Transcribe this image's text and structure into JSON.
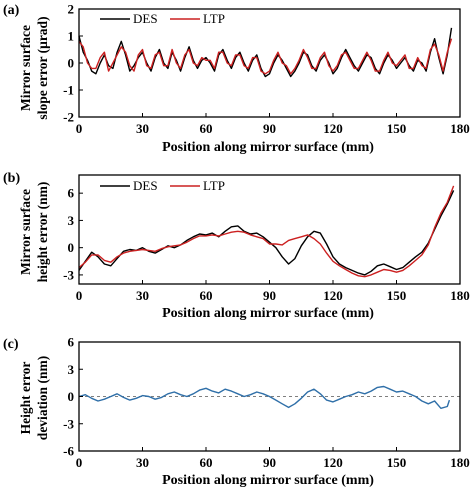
{
  "chart_data": [
    {
      "panel_label": "(a)",
      "type": "line",
      "xlabel": "Position along mirror surface (mm)",
      "ylabel_lines": [
        "Mirror surface",
        "slope error (μrad)"
      ],
      "xlim": [
        0,
        180
      ],
      "ylim": [
        -2,
        2
      ],
      "xticks": [
        0,
        30,
        60,
        90,
        120,
        150,
        180
      ],
      "yticks": [
        -2,
        -1,
        0,
        1,
        2
      ],
      "legend": "top-left",
      "series": [
        {
          "name": "DES",
          "color": "#000000",
          "x": [
            0,
            2,
            4,
            6,
            8,
            10,
            12,
            14,
            16,
            18,
            20,
            22,
            24,
            26,
            28,
            30,
            32,
            34,
            36,
            38,
            40,
            42,
            44,
            46,
            48,
            50,
            52,
            54,
            56,
            58,
            60,
            62,
            64,
            66,
            68,
            70,
            72,
            74,
            76,
            78,
            80,
            82,
            84,
            86,
            88,
            90,
            92,
            94,
            96,
            98,
            100,
            102,
            104,
            106,
            108,
            110,
            112,
            114,
            116,
            118,
            120,
            122,
            124,
            126,
            128,
            130,
            132,
            134,
            136,
            138,
            140,
            142,
            144,
            146,
            148,
            150,
            152,
            154,
            156,
            158,
            160,
            162,
            164,
            166,
            168,
            170,
            172,
            174,
            176
          ],
          "y": [
            1.0,
            0.4,
            0.1,
            -0.3,
            -0.4,
            0.0,
            0.3,
            -0.1,
            -0.2,
            0.4,
            0.8,
            0.3,
            -0.3,
            -0.1,
            0.2,
            0.4,
            0.0,
            -0.3,
            0.2,
            0.5,
            0.0,
            -0.2,
            0.4,
            0.1,
            -0.3,
            0.2,
            0.6,
            0.1,
            -0.2,
            0.1,
            0.2,
            0.0,
            -0.3,
            0.3,
            0.5,
            0.1,
            -0.2,
            0.2,
            0.4,
            0.0,
            -0.3,
            0.1,
            0.3,
            -0.2,
            -0.5,
            -0.4,
            0.0,
            0.3,
            0.1,
            -0.2,
            -0.5,
            -0.3,
            0.0,
            0.4,
            0.3,
            -0.1,
            -0.3,
            0.1,
            0.3,
            0.0,
            -0.4,
            -0.2,
            0.2,
            0.5,
            0.2,
            -0.1,
            -0.3,
            0.0,
            0.3,
            0.2,
            -0.2,
            -0.4,
            0.0,
            0.3,
            0.1,
            -0.2,
            0.0,
            0.2,
            -0.1,
            -0.3,
            0.1,
            0.0,
            -0.3,
            0.4,
            0.9,
            0.2,
            -0.4,
            0.3,
            1.3
          ]
        },
        {
          "name": "LTP",
          "color": "#cc2020",
          "x": [
            0,
            2,
            4,
            6,
            8,
            10,
            12,
            14,
            16,
            18,
            20,
            22,
            24,
            26,
            28,
            30,
            32,
            34,
            36,
            38,
            40,
            42,
            44,
            46,
            48,
            50,
            52,
            54,
            56,
            58,
            60,
            62,
            64,
            66,
            68,
            70,
            72,
            74,
            76,
            78,
            80,
            82,
            84,
            86,
            88,
            90,
            92,
            94,
            96,
            98,
            100,
            102,
            104,
            106,
            108,
            110,
            112,
            114,
            116,
            118,
            120,
            122,
            124,
            126,
            128,
            130,
            132,
            134,
            136,
            138,
            140,
            142,
            144,
            146,
            148,
            150,
            152,
            154,
            156,
            158,
            160,
            162,
            164,
            166,
            168,
            170,
            172,
            174,
            176
          ],
          "y": [
            0.8,
            0.6,
            0.0,
            -0.2,
            -0.2,
            0.2,
            0.4,
            -0.3,
            0.0,
            0.3,
            0.6,
            0.4,
            -0.1,
            -0.3,
            0.3,
            0.5,
            -0.1,
            -0.2,
            0.3,
            0.4,
            -0.1,
            -0.1,
            0.5,
            0.0,
            -0.2,
            0.3,
            0.5,
            0.0,
            -0.1,
            0.2,
            0.1,
            0.1,
            -0.2,
            0.4,
            0.4,
            0.0,
            -0.1,
            0.3,
            0.3,
            -0.1,
            -0.2,
            0.2,
            0.2,
            -0.3,
            -0.4,
            -0.3,
            0.1,
            0.4,
            0.0,
            -0.1,
            -0.4,
            -0.2,
            0.1,
            0.5,
            0.2,
            -0.2,
            -0.2,
            0.2,
            0.4,
            -0.1,
            -0.3,
            -0.1,
            0.3,
            0.4,
            0.1,
            -0.2,
            -0.2,
            0.1,
            0.4,
            0.1,
            -0.3,
            -0.3,
            0.1,
            0.4,
            0.0,
            -0.1,
            0.1,
            0.3,
            -0.2,
            -0.2,
            0.2,
            -0.1,
            -0.2,
            0.5,
            0.7,
            0.3,
            -0.3,
            0.4,
            0.9
          ]
        }
      ]
    },
    {
      "panel_label": "(b)",
      "type": "line",
      "xlabel": "Position along mirror surface (mm)",
      "ylabel_lines": [
        "Mirror surface",
        "height error (nm)"
      ],
      "xlim": [
        0,
        180
      ],
      "ylim": [
        -4,
        8
      ],
      "xticks": [
        0,
        30,
        60,
        90,
        120,
        150,
        180
      ],
      "yticks": [
        -3,
        0,
        3,
        6
      ],
      "legend": "top-left",
      "series": [
        {
          "name": "DES",
          "color": "#000000",
          "x": [
            0,
            3,
            6,
            9,
            12,
            15,
            18,
            21,
            24,
            27,
            30,
            33,
            36,
            39,
            42,
            45,
            48,
            51,
            54,
            57,
            60,
            63,
            66,
            69,
            72,
            75,
            78,
            81,
            84,
            87,
            90,
            93,
            96,
            99,
            102,
            105,
            108,
            111,
            114,
            117,
            120,
            123,
            126,
            129,
            132,
            135,
            138,
            141,
            144,
            147,
            150,
            153,
            156,
            159,
            162,
            165,
            168,
            171,
            174,
            177
          ],
          "y": [
            -2.5,
            -1.5,
            -0.5,
            -1.0,
            -1.8,
            -2.0,
            -1.2,
            -0.4,
            -0.2,
            -0.3,
            0.0,
            -0.4,
            -0.6,
            -0.2,
            0.2,
            0.0,
            0.3,
            0.8,
            1.2,
            1.5,
            1.4,
            1.6,
            1.2,
            1.8,
            2.3,
            2.4,
            1.8,
            1.5,
            1.6,
            1.2,
            0.6,
            0.0,
            -1.0,
            -1.8,
            -1.2,
            0.2,
            1.2,
            1.8,
            1.6,
            0.4,
            -1.0,
            -1.8,
            -2.2,
            -2.5,
            -2.8,
            -3.0,
            -2.6,
            -2.0,
            -1.8,
            -2.1,
            -2.4,
            -2.2,
            -1.6,
            -1.0,
            -0.5,
            0.5,
            2.0,
            3.5,
            4.8,
            6.3
          ]
        },
        {
          "name": "LTP",
          "color": "#cc2020",
          "x": [
            0,
            3,
            6,
            9,
            12,
            15,
            18,
            21,
            24,
            27,
            30,
            33,
            36,
            39,
            42,
            45,
            48,
            51,
            54,
            57,
            60,
            63,
            66,
            69,
            72,
            75,
            78,
            81,
            84,
            87,
            90,
            93,
            96,
            99,
            102,
            105,
            108,
            111,
            114,
            117,
            120,
            123,
            126,
            129,
            132,
            135,
            138,
            141,
            144,
            147,
            150,
            153,
            156,
            159,
            162,
            165,
            168,
            171,
            174,
            177
          ],
          "y": [
            -2.2,
            -1.6,
            -0.8,
            -0.8,
            -1.4,
            -1.6,
            -1.0,
            -0.6,
            -0.4,
            -0.3,
            -0.2,
            -0.3,
            -0.4,
            -0.1,
            0.1,
            0.2,
            0.3,
            0.6,
            1.0,
            1.3,
            1.3,
            1.4,
            1.3,
            1.5,
            1.7,
            1.8,
            1.7,
            1.4,
            1.2,
            1.0,
            0.4,
            0.4,
            0.3,
            0.8,
            1.0,
            1.2,
            1.4,
            1.0,
            0.4,
            -0.6,
            -1.5,
            -2.0,
            -2.4,
            -2.8,
            -3.1,
            -3.2,
            -3.0,
            -2.7,
            -2.4,
            -2.5,
            -2.7,
            -2.5,
            -2.0,
            -1.4,
            -0.8,
            0.3,
            2.2,
            3.8,
            5.0,
            6.8
          ]
        }
      ]
    },
    {
      "panel_label": "(c)",
      "type": "line",
      "xlabel": "Position along mirror surface (mm)",
      "ylabel_lines": [
        "Height error",
        "deviation (nm)"
      ],
      "xlim": [
        0,
        180
      ],
      "ylim": [
        -6,
        6
      ],
      "xticks": [
        0,
        30,
        60,
        90,
        120,
        150,
        180
      ],
      "yticks": [
        -6,
        -3,
        0,
        3,
        6
      ],
      "legend": "none",
      "series": [
        {
          "color": "#2f6fa8",
          "x": [
            0,
            3,
            6,
            9,
            12,
            15,
            18,
            21,
            24,
            27,
            30,
            33,
            36,
            39,
            42,
            45,
            48,
            51,
            54,
            57,
            60,
            63,
            66,
            69,
            72,
            75,
            78,
            81,
            84,
            87,
            90,
            93,
            96,
            99,
            102,
            105,
            108,
            111,
            114,
            117,
            120,
            123,
            126,
            129,
            132,
            135,
            138,
            141,
            144,
            147,
            150,
            153,
            156,
            159,
            162,
            165,
            168,
            171,
            174,
            175
          ],
          "y": [
            0.0,
            0.2,
            -0.2,
            -0.5,
            -0.3,
            0.0,
            0.3,
            -0.1,
            -0.4,
            -0.2,
            0.1,
            0.0,
            -0.3,
            -0.1,
            0.3,
            0.5,
            0.2,
            0.0,
            0.3,
            0.7,
            0.9,
            0.6,
            0.4,
            0.8,
            0.6,
            0.3,
            0.0,
            0.2,
            0.5,
            0.3,
            0.0,
            -0.4,
            -0.8,
            -1.2,
            -0.8,
            -0.2,
            0.5,
            0.8,
            0.3,
            -0.4,
            -0.6,
            -0.3,
            0.0,
            0.2,
            0.5,
            0.3,
            0.6,
            1.0,
            1.1,
            0.8,
            0.5,
            0.6,
            0.3,
            0.0,
            -0.5,
            -0.8,
            -0.5,
            -1.3,
            -1.1,
            -0.4
          ]
        }
      ]
    }
  ]
}
